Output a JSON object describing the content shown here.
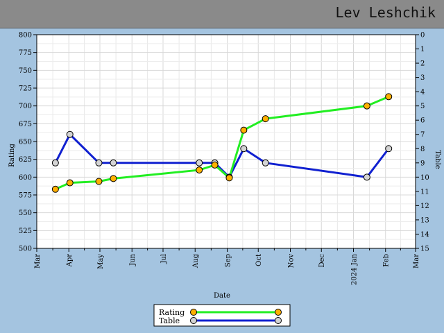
{
  "header": {
    "name": "Lev Leshchik"
  },
  "chart_data": {
    "type": "line",
    "xlabel": "Date",
    "ylabel_left": "Rating",
    "ylabel_right": "Table",
    "ylim_left": [
      500,
      800
    ],
    "ylim_right": [
      0,
      15
    ],
    "y_right_inverted": true,
    "grid": true,
    "legend_position": "bottom-center",
    "x_range": [
      "2023-03-01",
      "2024-03-01"
    ],
    "x_tick_labels": [
      {
        "date": "2023-03-01",
        "label": "Mar"
      },
      {
        "date": "2023-04-01",
        "label": "Apr"
      },
      {
        "date": "2023-05-01",
        "label": "May"
      },
      {
        "date": "2023-06-01",
        "label": "Jun"
      },
      {
        "date": "2023-07-01",
        "label": "Jul"
      },
      {
        "date": "2023-08-01",
        "label": "Aug"
      },
      {
        "date": "2023-09-01",
        "label": "Sep"
      },
      {
        "date": "2023-10-01",
        "label": "Oct"
      },
      {
        "date": "2023-11-01",
        "label": "Nov"
      },
      {
        "date": "2023-12-01",
        "label": "Dec"
      },
      {
        "date": "2024-01-01",
        "label": "2024 Jan"
      },
      {
        "date": "2024-02-01",
        "label": "Feb"
      },
      {
        "date": "2024-03-01",
        "label": "Mar"
      }
    ],
    "y_left_ticks": [
      500,
      525,
      550,
      575,
      600,
      625,
      650,
      675,
      700,
      725,
      750,
      775,
      800
    ],
    "y_right_ticks": [
      0,
      1,
      2,
      3,
      4,
      5,
      6,
      7,
      8,
      9,
      10,
      11,
      12,
      13,
      14,
      15
    ],
    "series": [
      {
        "name": "Rating",
        "axis": "left",
        "line_color": "#22ee22",
        "marker_color": "#ffb000",
        "points": [
          {
            "x": "2023-03-19",
            "y": 583
          },
          {
            "x": "2023-04-02",
            "y": 592
          },
          {
            "x": "2023-04-30",
            "y": 594
          },
          {
            "x": "2023-05-14",
            "y": 598
          },
          {
            "x": "2023-08-05",
            "y": 610
          },
          {
            "x": "2023-08-20",
            "y": 617
          },
          {
            "x": "2023-09-03",
            "y": 599
          },
          {
            "x": "2023-09-17",
            "y": 666
          },
          {
            "x": "2023-10-08",
            "y": 682
          },
          {
            "x": "2024-01-14",
            "y": 700
          },
          {
            "x": "2024-02-04",
            "y": 713
          }
        ]
      },
      {
        "name": "Table",
        "axis": "right",
        "line_color": "#1020d0",
        "marker_color": "#d4d4d4",
        "points": [
          {
            "x": "2023-03-19",
            "y": 9
          },
          {
            "x": "2023-04-02",
            "y": 7
          },
          {
            "x": "2023-04-30",
            "y": 9
          },
          {
            "x": "2023-05-14",
            "y": 9
          },
          {
            "x": "2023-08-05",
            "y": 9
          },
          {
            "x": "2023-08-20",
            "y": 9
          },
          {
            "x": "2023-09-03",
            "y": 10
          },
          {
            "x": "2023-09-17",
            "y": 8
          },
          {
            "x": "2023-10-08",
            "y": 9
          },
          {
            "x": "2024-01-14",
            "y": 10
          },
          {
            "x": "2024-02-04",
            "y": 8
          }
        ]
      }
    ]
  }
}
